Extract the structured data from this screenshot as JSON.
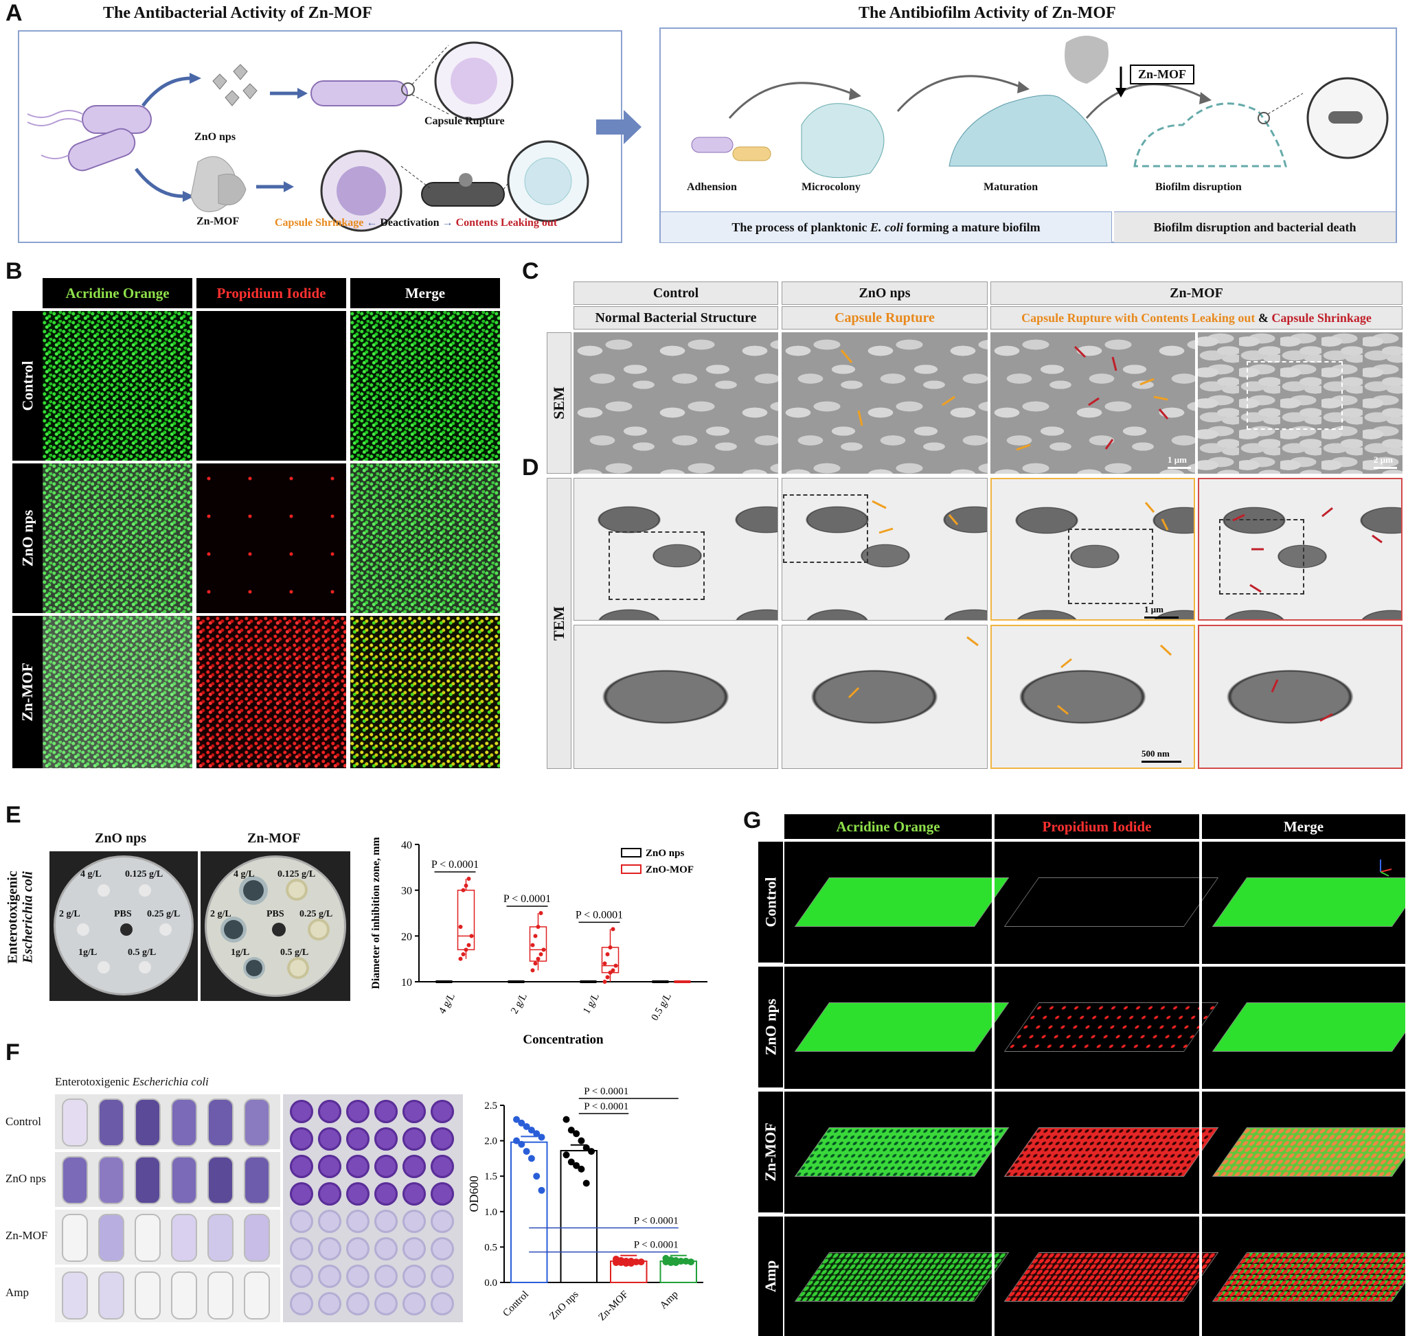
{
  "panels": {
    "A": "A",
    "B": "B",
    "C": "C",
    "D": "D",
    "E": "E",
    "F": "F",
    "G": "G"
  },
  "panelA": {
    "left_title": "The Antibacterial Activity of Zn-MOF",
    "right_title": "The Antibiofilm Activity of Zn-MOF",
    "zno_label": "ZnO nps",
    "znmof_label": "Zn-MOF",
    "capsule_rupture": "Capsule Rupture",
    "capsule_shrinkage": "Capsule Shrinkage",
    "deactivation": "Deactivation",
    "contents_leaking": "Contents Leaking out",
    "zn_mof_box": "Zn-MOF",
    "stages": [
      "Adhension",
      "Microcolony",
      "Maturation",
      "Biofilm disruption"
    ],
    "footer_left_pre": "The process of planktonic ",
    "footer_left_italic": "E. coli",
    "footer_left_post": " forming a mature biofilm",
    "footer_right": "Biofilm disruption and bacterial death",
    "colors": {
      "orange": "#e8891c",
      "red": "#c0202a",
      "blue": "#4a68a8"
    }
  },
  "panelB": {
    "columns": [
      "Acridine Orange",
      "Propidium Iodide",
      "Merge"
    ],
    "rows": [
      "Control",
      "ZnO nps",
      "Zn-MOF"
    ],
    "column_colors": [
      "#8ee04a",
      "#ff3030",
      "#ffffff"
    ]
  },
  "panelC": {
    "groups": [
      "Control",
      "ZnO nps",
      "Zn-MOF"
    ],
    "subs": [
      "Normal Bacterial Structure",
      "Capsule Rupture"
    ],
    "sub_zn_orange": "Capsule Rupture with Contents Leaking out",
    "sub_zn_amp": " & ",
    "sub_zn_red": "Capsule Shrinkage",
    "sem_label": "SEM",
    "tem_label": "TEM",
    "scale_1um": "1 μm",
    "scale_2um": "2 μm",
    "scale_500nm": "500 nm"
  },
  "panelE": {
    "plate_titles": [
      "ZnO nps",
      "Zn-MOF"
    ],
    "side_label_1": "Enterotoxigenic",
    "side_label_2": "Escherichia coli",
    "well_labels": [
      "4 g/L",
      "0.125 g/L",
      "2 g/L",
      "PBS",
      "0.25 g/L",
      "1g/L",
      "0.5 g/L"
    ]
  },
  "panelF": {
    "title_pre": "Enterotoxigenic ",
    "title_italic": "Escherichia coli",
    "rows": [
      "Control",
      "ZnO nps",
      "Zn-MOF",
      "Amp"
    ]
  },
  "panelG": {
    "columns": [
      "Acridine Orange",
      "Propidium Iodide",
      "Merge"
    ],
    "rows": [
      "Control",
      "ZnO nps",
      "Zn-MOF",
      "Amp"
    ]
  },
  "chart_data": [
    {
      "type": "box",
      "panel": "E",
      "ylabel": "Diameter of inhibition zone, mm",
      "xlabel": "Concentration",
      "categories": [
        "4 g/L",
        "2 g/L",
        "1 g/L",
        "0.5 g/L"
      ],
      "ylim": [
        10,
        40
      ],
      "yticks": [
        10,
        20,
        30,
        40
      ],
      "legend": [
        "ZnO nps",
        "ZnO-MOF"
      ],
      "legend_position": "top-right",
      "series": [
        {
          "name": "ZnO nps",
          "color": "#000000",
          "boxes": [
            {
              "min": 10,
              "q1": 10,
              "median": 10,
              "q3": 10,
              "max": 10
            },
            {
              "min": 10,
              "q1": 10,
              "median": 10,
              "q3": 10,
              "max": 10
            },
            {
              "min": 10,
              "q1": 10,
              "median": 10,
              "q3": 10,
              "max": 10
            },
            {
              "min": 10,
              "q1": 10,
              "median": 10,
              "q3": 10,
              "max": 10
            }
          ]
        },
        {
          "name": "ZnO-MOF",
          "color": "#e02020",
          "boxes": [
            {
              "min": 15,
              "q1": 17,
              "median": 20,
              "q3": 30,
              "max": 32.5,
              "points": [
                15,
                16,
                17,
                18,
                20,
                22,
                30,
                31,
                32.5
              ]
            },
            {
              "min": 12.5,
              "q1": 14.5,
              "median": 17,
              "q3": 22,
              "max": 25,
              "points": [
                12.5,
                14,
                15,
                16,
                17,
                18,
                20,
                22,
                25
              ]
            },
            {
              "min": 10,
              "q1": 12,
              "median": 13.5,
              "q3": 17.5,
              "max": 21.5,
              "points": [
                10,
                11,
                12,
                12.5,
                13.5,
                14,
                16,
                17.5,
                21.5
              ]
            },
            {
              "min": 10,
              "q1": 10,
              "median": 10,
              "q3": 10,
              "max": 10
            }
          ]
        }
      ],
      "annotations": [
        "P < 0.0001",
        "P < 0.0001",
        "P < 0.0001"
      ]
    },
    {
      "type": "bar",
      "panel": "F",
      "ylabel": "OD600",
      "categories": [
        "Control",
        "ZnO nps",
        "Zn-MOF",
        "Amp"
      ],
      "ylim": [
        0,
        2.5
      ],
      "yticks": [
        0.0,
        0.5,
        1.0,
        1.5,
        2.0,
        2.5
      ],
      "values": [
        1.98,
        1.86,
        0.3,
        0.3
      ],
      "colors": [
        "#2a5ed8",
        "#000000",
        "#e02020",
        "#22a03a"
      ],
      "points": [
        [
          2.3,
          2.25,
          2.2,
          2.15,
          2.1,
          2.05,
          2.0,
          1.95,
          1.85,
          1.75,
          1.5,
          1.3
        ],
        [
          2.3,
          2.15,
          2.1,
          2.0,
          1.9,
          1.85,
          1.8,
          1.7,
          1.65,
          1.6,
          1.4
        ],
        [
          0.33,
          0.31,
          0.3,
          0.3,
          0.29,
          0.29,
          0.28,
          0.28,
          0.27,
          0.27
        ],
        [
          0.34,
          0.32,
          0.31,
          0.3,
          0.3,
          0.29,
          0.29,
          0.28,
          0.28
        ]
      ],
      "annotations": [
        "P < 0.0001",
        "P < 0.0001",
        "P < 0.0001",
        "P < 0.0001"
      ]
    }
  ]
}
